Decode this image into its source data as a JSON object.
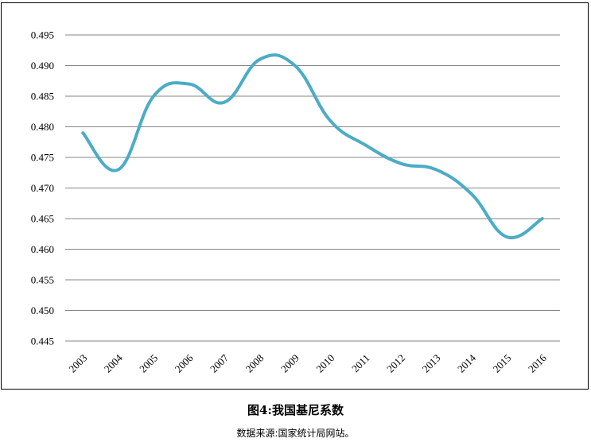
{
  "chart_data": {
    "type": "line",
    "title": "图4:我国基尼系数",
    "source": "数据来源:国家统计局网站。",
    "xlabel": "",
    "ylabel": "",
    "categories": [
      "2003",
      "2004",
      "2005",
      "2006",
      "2007",
      "2008",
      "2009",
      "2010",
      "2011",
      "2012",
      "2013",
      "2014",
      "2015",
      "2016"
    ],
    "series": [
      {
        "name": "基尼系数",
        "color": "#4bacc6",
        "values": [
          0.479,
          0.473,
          0.485,
          0.487,
          0.484,
          0.491,
          0.49,
          0.481,
          0.477,
          0.474,
          0.473,
          0.469,
          0.462,
          0.465
        ]
      }
    ],
    "ylim": [
      0.445,
      0.495
    ],
    "yticks": [
      "0.495",
      "0.490",
      "0.485",
      "0.480",
      "0.475",
      "0.470",
      "0.465",
      "0.460",
      "0.455",
      "0.450",
      "0.445"
    ],
    "grid": true,
    "legend": "none"
  }
}
